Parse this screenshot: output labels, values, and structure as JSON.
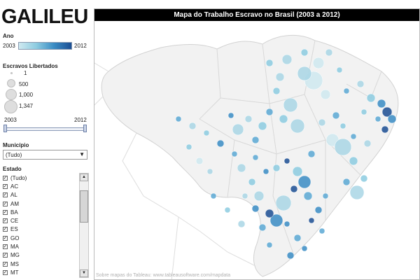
{
  "logo": "GALILEU",
  "legend": {
    "ano_title": "Ano",
    "ano_min": "2003",
    "ano_max": "2012",
    "gradient_colors": [
      "#cfe9f0",
      "#1b4e93"
    ],
    "escravos_title": "Escravos Libertados",
    "sizes": [
      "1",
      "500",
      "1,000",
      "1,347"
    ]
  },
  "slider": {
    "min_label": "2003",
    "max_label": "2012"
  },
  "municipio": {
    "title": "Município",
    "value": "(Tudo)"
  },
  "estado": {
    "title": "Estado",
    "items": [
      "(Tudo)",
      "AC",
      "AL",
      "AM",
      "BA",
      "CE",
      "ES",
      "GO",
      "MA",
      "MG",
      "MS",
      "MT"
    ]
  },
  "map": {
    "title": "Mapa do Trabalho Escravo no Brasil (2003 a 2012)",
    "attribution": "Sobre mapas do Tableau: www.tableausoftware.com/mapdata",
    "land_color": "#f2f2f2",
    "border_color": "#d8d8d8"
  }
}
